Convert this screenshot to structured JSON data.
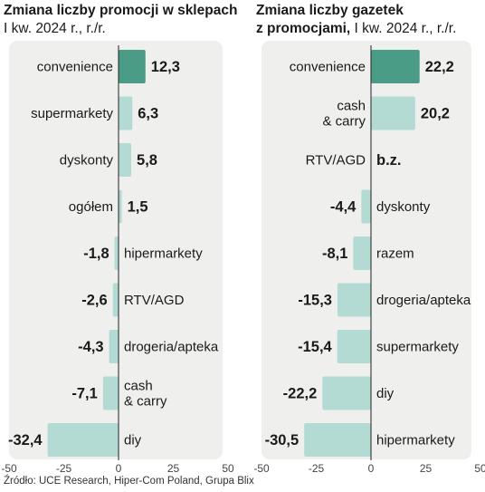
{
  "chart_data": [
    {
      "type": "bar",
      "orientation": "horizontal",
      "title": "Zmiana liczby promocji w sklepach",
      "subtitle": "I kw. 2024 r., r./r.",
      "xlim": [
        -50,
        50
      ],
      "xticks": [
        "-50",
        "-25",
        "0",
        "25",
        "50"
      ],
      "grid": false,
      "series": [
        {
          "values": [
            12.3,
            6.3,
            5.8,
            1.5,
            -1.8,
            -2.6,
            -4.3,
            -7.1,
            -32.4
          ]
        }
      ],
      "categories": [
        "convenience",
        "supermarkety",
        "dyskonty",
        "ogółem",
        "hipermarkety",
        "RTV/AGD",
        "drogeria/apteka",
        "cash\n& carry",
        "diy"
      ],
      "value_labels": [
        "12,3",
        "6,3",
        "5,8",
        "1,5",
        "-1,8",
        "-2,6",
        "-4,3",
        "-7,1",
        "-32,4"
      ],
      "highlight_index": 0
    },
    {
      "type": "bar",
      "orientation": "horizontal",
      "title": "Zmiana liczby gazetek",
      "title_line2": "z promocjami,",
      "subtitle": "I kw. 2024 r., r./r.",
      "xlim": [
        -50,
        50
      ],
      "xticks": [
        "-50",
        "-25",
        "0",
        "25",
        "50"
      ],
      "grid": false,
      "series": [
        {
          "values": [
            22.2,
            20.2,
            null,
            -4.4,
            -8.1,
            -15.3,
            -15.4,
            -22.2,
            -30.5
          ]
        }
      ],
      "categories": [
        "convenience",
        "cash\n& carry",
        "RTV/AGD",
        "dyskonty",
        "razem",
        "drogeria/apteka",
        "supermarkety",
        "diy",
        "hipermarkety"
      ],
      "value_labels": [
        "22,2",
        "20,2",
        "b.z.",
        "-4,4",
        "-8,1",
        "-15,3",
        "-15,4",
        "-22,2",
        "-30,5"
      ],
      "highlight_index": 0
    }
  ],
  "source": "Źródło: UCE Research, Hiper-Com Poland, Grupa Blix",
  "colors": {
    "highlight": "#4a9c86",
    "bar": "#b3dbd3",
    "panel": "#efefed",
    "axis": "#222222"
  }
}
